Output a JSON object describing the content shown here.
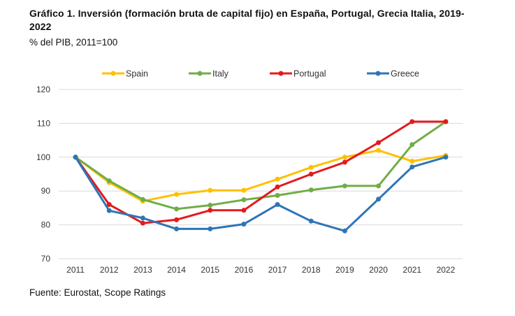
{
  "header": {
    "title": "Gráfico 1. Inversión (formación bruta de capital fijo) en España, Portugal, Grecia Italia, 2019-2022",
    "subtitle": "% del PIB, 2011=100"
  },
  "footer": {
    "source": "Fuente: Eurostat, Scope Ratings"
  },
  "chart_data": {
    "type": "line",
    "title": "",
    "xlabel": "",
    "ylabel": "",
    "x": [
      "2011",
      "2012",
      "2013",
      "2014",
      "2015",
      "2016",
      "2017",
      "2018",
      "2019",
      "2020",
      "2021",
      "2022"
    ],
    "ylim": [
      70,
      120
    ],
    "yticks": [
      70,
      80,
      90,
      100,
      110,
      120
    ],
    "grid": true,
    "legend_position": "top",
    "series": [
      {
        "name": "Spain",
        "color": "#FFC000",
        "values": [
          100,
          92.5,
          87,
          89,
          90.2,
          90.2,
          93.5,
          97,
          100,
          102,
          98.8,
          100.5
        ]
      },
      {
        "name": "Italy",
        "color": "#70AD47",
        "values": [
          100,
          93,
          87.5,
          84.7,
          85.8,
          87.4,
          88.7,
          90.3,
          91.5,
          91.5,
          103.7,
          110.5
        ]
      },
      {
        "name": "Portugal",
        "color": "#E31A1C",
        "values": [
          100,
          86,
          80.5,
          81.5,
          84.3,
          84.3,
          91.2,
          95,
          98.5,
          104.3,
          110.5,
          110.5
        ]
      },
      {
        "name": "Greece",
        "color": "#2E75B6",
        "values": [
          100,
          84.2,
          82,
          78.8,
          78.8,
          80.2,
          86,
          81.1,
          78.2,
          87.6,
          97.1,
          100
        ]
      }
    ]
  }
}
